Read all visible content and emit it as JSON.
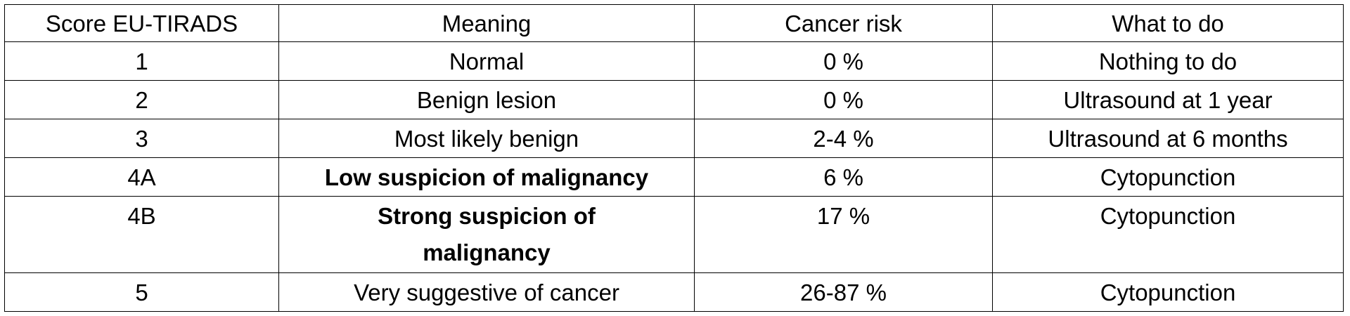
{
  "table": {
    "header": [
      "Score EU-TIRADS",
      "Meaning",
      "Cancer risk",
      "What to do"
    ],
    "rows": [
      [
        "1",
        "Normal",
        "0 %",
        "Nothing to do"
      ],
      [
        "2",
        "Benign lesion",
        "0 %",
        "Ultrasound at 1 year"
      ],
      [
        "3",
        "Most likely benign",
        "2-4 %",
        "Ultrasound at 6 months"
      ],
      [
        "4A",
        "Low suspicion of malignancy",
        "6 %",
        "Cytopunction"
      ],
      [
        "4B",
        "Strong suspicion of malignancy",
        "17 %",
        "Cytopunction"
      ],
      [
        "5",
        "Very suggestive of cancer",
        "26-87 %",
        "Cytopunction"
      ]
    ]
  }
}
